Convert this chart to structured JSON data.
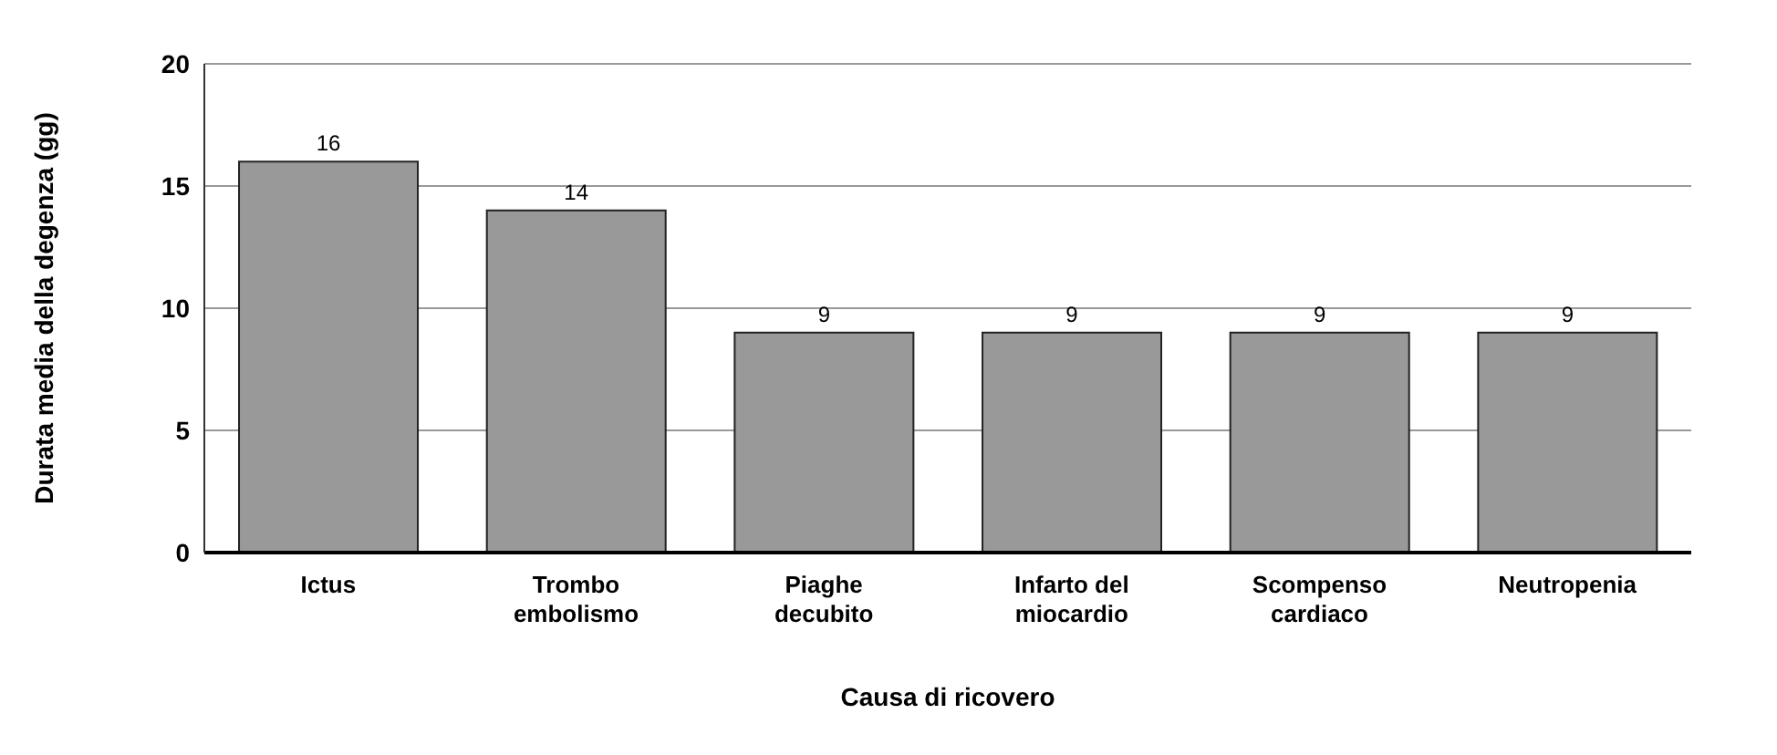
{
  "chart_data": {
    "type": "bar",
    "xlabel": "Causa di ricovero",
    "ylabel": "Durata media della degenza (gg)",
    "categories": [
      "Ictus",
      "Trombo embolismo",
      "Piaghe decubito",
      "Infarto del miocardio",
      "Scompenso cardiaco",
      "Neutropenia"
    ],
    "values": [
      16,
      14,
      9,
      9,
      9,
      9
    ],
    "color": "#999999",
    "ylim": [
      0,
      20
    ],
    "yticks": [
      0,
      5,
      10,
      15,
      20
    ],
    "grid": "y",
    "data_labels": true
  }
}
